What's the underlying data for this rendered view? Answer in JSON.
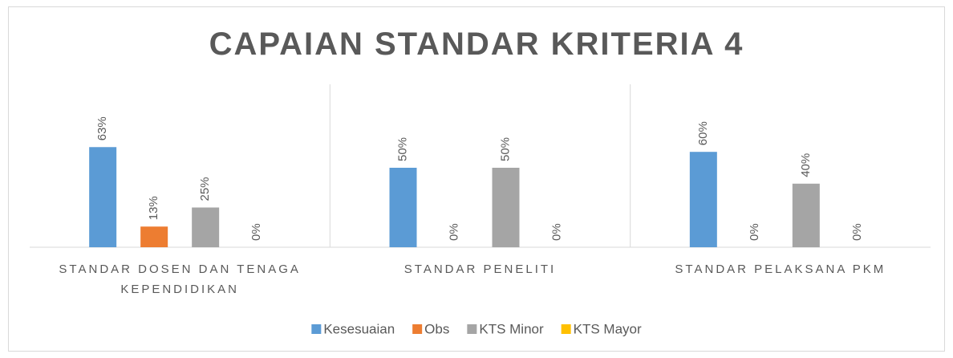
{
  "chart_data": {
    "type": "bar",
    "title": "CAPAIAN STANDAR KRITERIA 4",
    "categories": [
      "STANDAR DOSEN DAN TENAGA KEPENDIDIKAN",
      "STANDAR PENELITI",
      "STANDAR PELAKSANA PKM"
    ],
    "series": [
      {
        "name": "Kesesuaian",
        "color": "#5b9bd5",
        "values": [
          63,
          50,
          60
        ],
        "value_labels": [
          "63%",
          "50%",
          "60%"
        ]
      },
      {
        "name": "Obs",
        "color": "#ed7d31",
        "values": [
          13,
          0,
          0
        ],
        "value_labels": [
          "13%",
          "0%",
          "0%"
        ]
      },
      {
        "name": "KTS Minor",
        "color": "#a5a5a5",
        "values": [
          25,
          50,
          40
        ],
        "value_labels": [
          "25%",
          "50%",
          "40%"
        ]
      },
      {
        "name": "KTS Mayor",
        "color": "#ffc000",
        "values": [
          0,
          0,
          0
        ],
        "value_labels": [
          "0%",
          "0%",
          "0%"
        ]
      }
    ],
    "ylim": [
      0,
      100
    ],
    "legend": "bottom"
  }
}
